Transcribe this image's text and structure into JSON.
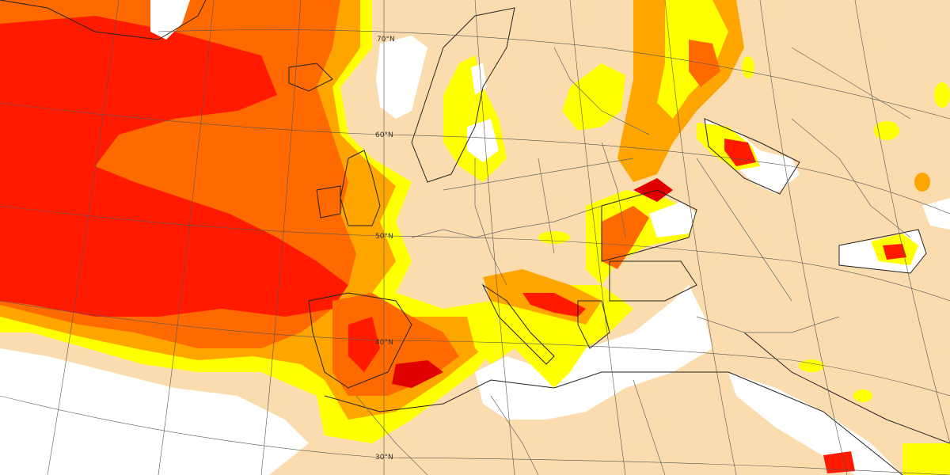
{
  "map": {
    "graticule_labels": {
      "lat70": "70°N",
      "lat60": "60°N",
      "lat50": "50°N",
      "lat40": "40°N",
      "lat30": "30°N"
    },
    "colors": {
      "land": "#fbdcae",
      "no_data": "#ffffff",
      "level1": "#ffff00",
      "level2": "#ffa500",
      "level3": "#ff6a00",
      "level4": "#ff1a00",
      "level5": "#e00000",
      "coast": "#222222",
      "border": "#555555",
      "grid": "#555555"
    },
    "legend": null
  }
}
